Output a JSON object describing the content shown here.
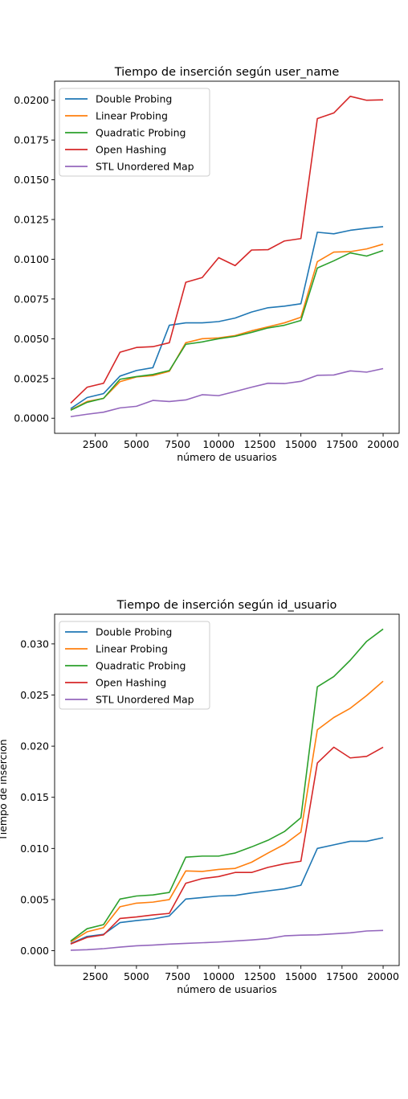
{
  "chart_data": [
    {
      "type": "line",
      "title": "Tiempo de inserción según user_name",
      "xlabel": "número de usuarios",
      "ylabel": "",
      "xlim": [
        25,
        20975
      ],
      "ylim": [
        -0.00095,
        0.0212
      ],
      "x_ticks": [
        2500,
        5000,
        7500,
        10000,
        12500,
        15000,
        17500,
        20000
      ],
      "y_ticks": [
        0.0,
        0.0025,
        0.005,
        0.0075,
        0.01,
        0.0125,
        0.015,
        0.0175,
        0.02
      ],
      "y_tick_labels": [
        "0.0000",
        "0.0025",
        "0.0050",
        "0.0075",
        "0.0100",
        "0.0125",
        "0.0150",
        "0.0175",
        "0.0200"
      ],
      "grid": false,
      "legend_position": "top-left",
      "x": [
        1000,
        2000,
        3000,
        4000,
        5000,
        6000,
        7000,
        8000,
        9000,
        10000,
        11000,
        12000,
        13000,
        14000,
        15000,
        16000,
        17000,
        18000,
        19000,
        20000
      ],
      "series": [
        {
          "name": "Double Probing",
          "color": "#1f77b4",
          "values": [
            0.0006,
            0.0013,
            0.00155,
            0.00265,
            0.003,
            0.00318,
            0.00585,
            0.006,
            0.006,
            0.00608,
            0.0063,
            0.00668,
            0.00695,
            0.00705,
            0.0072,
            0.0117,
            0.0116,
            0.01182,
            0.01195,
            0.01205
          ]
        },
        {
          "name": "Linear Probing",
          "color": "#ff7f0e",
          "values": [
            0.00052,
            0.00105,
            0.00125,
            0.0023,
            0.0026,
            0.00268,
            0.00295,
            0.00475,
            0.005,
            0.00505,
            0.0052,
            0.0055,
            0.00575,
            0.006,
            0.00635,
            0.00985,
            0.01045,
            0.01048,
            0.01065,
            0.01095
          ]
        },
        {
          "name": "Quadratic Probing",
          "color": "#2ca02c",
          "values": [
            0.0005,
            0.001,
            0.00125,
            0.00245,
            0.00262,
            0.00275,
            0.003,
            0.00465,
            0.0048,
            0.005,
            0.00515,
            0.0054,
            0.00568,
            0.00585,
            0.00615,
            0.00945,
            0.0099,
            0.0104,
            0.0102,
            0.01055
          ]
        },
        {
          "name": "Open Hashing",
          "color": "#d62728",
          "values": [
            0.00095,
            0.00195,
            0.0022,
            0.00415,
            0.00445,
            0.0045,
            0.00475,
            0.00855,
            0.00885,
            0.0101,
            0.0096,
            0.01058,
            0.0106,
            0.01115,
            0.0113,
            0.01885,
            0.0192,
            0.02025,
            0.02,
            0.02003
          ]
        },
        {
          "name": "STL Unordered Map",
          "color": "#9467bd",
          "values": [
            0.0001,
            0.00025,
            0.00038,
            0.00065,
            0.00075,
            0.00112,
            0.00105,
            0.00115,
            0.00148,
            0.00142,
            0.00168,
            0.00195,
            0.0022,
            0.00218,
            0.00232,
            0.0027,
            0.00272,
            0.00298,
            0.0029,
            0.00312
          ]
        }
      ]
    },
    {
      "type": "line",
      "title": "Tiempo de inserción según id_usuario",
      "xlabel": "número de usuarios",
      "ylabel": "Tiempo de inserción",
      "xlim": [
        25,
        20975
      ],
      "ylim": [
        -0.00145,
        0.0329
      ],
      "x_ticks": [
        2500,
        5000,
        7500,
        10000,
        12500,
        15000,
        17500,
        20000
      ],
      "y_ticks": [
        0.0,
        0.005,
        0.01,
        0.015,
        0.02,
        0.025,
        0.03
      ],
      "y_tick_labels": [
        "0.000",
        "0.005",
        "0.010",
        "0.015",
        "0.020",
        "0.025",
        "0.030"
      ],
      "grid": false,
      "legend_position": "top-left",
      "x": [
        1000,
        2000,
        3000,
        4000,
        5000,
        6000,
        7000,
        8000,
        9000,
        10000,
        11000,
        12000,
        13000,
        14000,
        15000,
        16000,
        17000,
        18000,
        19000,
        20000
      ],
      "series": [
        {
          "name": "Double Probing",
          "color": "#1f77b4",
          "values": [
            0.0007,
            0.0014,
            0.0016,
            0.00275,
            0.00295,
            0.0031,
            0.0034,
            0.00505,
            0.0052,
            0.00535,
            0.0054,
            0.00565,
            0.00585,
            0.00605,
            0.0064,
            0.01,
            0.01035,
            0.0107,
            0.0107,
            0.01105
          ]
        },
        {
          "name": "Linear Probing",
          "color": "#ff7f0e",
          "values": [
            0.00085,
            0.00185,
            0.00225,
            0.0043,
            0.00465,
            0.00475,
            0.005,
            0.0078,
            0.00775,
            0.00795,
            0.00805,
            0.00865,
            0.00955,
            0.0104,
            0.0116,
            0.0216,
            0.0228,
            0.0237,
            0.02495,
            0.02635
          ]
        },
        {
          "name": "Quadratic Probing",
          "color": "#2ca02c",
          "values": [
            0.00095,
            0.00215,
            0.00255,
            0.00505,
            0.00535,
            0.00545,
            0.0057,
            0.00915,
            0.00925,
            0.00925,
            0.00955,
            0.01015,
            0.0108,
            0.01165,
            0.013,
            0.0258,
            0.0268,
            0.0284,
            0.03025,
            0.03145
          ]
        },
        {
          "name": "Open Hashing",
          "color": "#d62728",
          "values": [
            0.00065,
            0.0013,
            0.00155,
            0.00315,
            0.0033,
            0.0035,
            0.00365,
            0.0066,
            0.00705,
            0.00725,
            0.00765,
            0.00765,
            0.00815,
            0.0085,
            0.00875,
            0.01835,
            0.0199,
            0.01885,
            0.019,
            0.0199
          ]
        },
        {
          "name": "STL Unordered Map",
          "color": "#9467bd",
          "values": [
            5e-05,
            0.0001,
            0.0002,
            0.00035,
            0.00048,
            0.00055,
            0.00065,
            0.00072,
            0.00078,
            0.00085,
            0.00095,
            0.00105,
            0.00118,
            0.00145,
            0.00152,
            0.00155,
            0.00165,
            0.00175,
            0.00193,
            0.00198
          ]
        }
      ]
    }
  ]
}
